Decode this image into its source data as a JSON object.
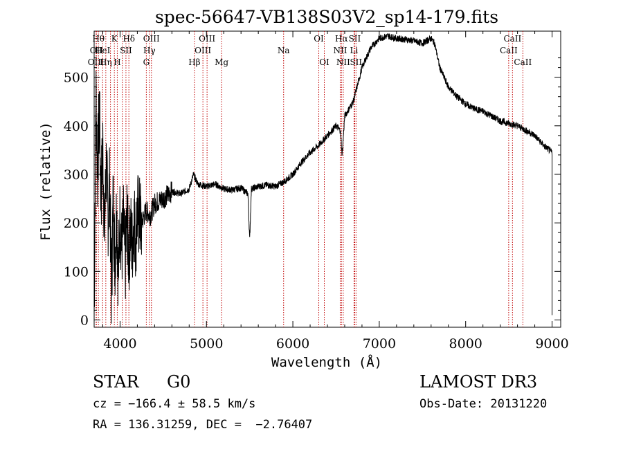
{
  "chart_data": {
    "type": "line",
    "title": "spec-56647-VB138S03V2_sp14-179.fits",
    "xlabel": "Wavelength (Å)",
    "ylabel": "Flux (relative)",
    "xlim": [
      3700,
      9100
    ],
    "ylim": [
      -15,
      595
    ],
    "xticks": [
      4000,
      5000,
      6000,
      7000,
      8000,
      9000
    ],
    "yticks": [
      0,
      100,
      200,
      300,
      400,
      500
    ],
    "grid": false,
    "series": [
      {
        "values_x": [
          3700,
          3720,
          3740,
          3760,
          3780,
          3800,
          3820,
          3840,
          3860,
          3880,
          3900,
          3920,
          3940,
          3960,
          3980,
          4000,
          4020,
          4040,
          4060,
          4080,
          4100,
          4120,
          4140,
          4160,
          4180,
          4200,
          4250,
          4300,
          4350,
          4400,
          4500,
          4600,
          4700,
          4800,
          4850,
          4900,
          5000,
          5100,
          5200,
          5300,
          5400,
          5480,
          5500,
          5520,
          5600,
          5700,
          5800,
          5900,
          6000,
          6100,
          6200,
          6300,
          6400,
          6500,
          6550,
          6570,
          6600,
          6700,
          6800,
          6900,
          7000,
          7100,
          7200,
          7300,
          7400,
          7500,
          7600,
          7640,
          7700,
          7800,
          7900,
          8000,
          8100,
          8200,
          8300,
          8400,
          8500,
          8600,
          8700,
          8800,
          8900,
          9000
        ],
        "values_y": [
          0,
          480,
          300,
          440,
          250,
          360,
          180,
          320,
          210,
          280,
          60,
          250,
          120,
          230,
          90,
          220,
          140,
          200,
          110,
          210,
          130,
          190,
          150,
          210,
          170,
          220,
          200,
          225,
          215,
          240,
          250,
          265,
          260,
          270,
          300,
          280,
          275,
          280,
          270,
          268,
          272,
          260,
          165,
          270,
          275,
          278,
          275,
          285,
          300,
          325,
          345,
          360,
          380,
          400,
          390,
          340,
          420,
          450,
          520,
          560,
          580,
          585,
          580,
          578,
          575,
          570,
          580,
          570,
          520,
          480,
          460,
          445,
          435,
          430,
          420,
          410,
          405,
          400,
          390,
          380,
          360,
          345
        ]
      }
    ],
    "lines": [
      {
        "wl": 3750,
        "label": "Hθ",
        "row": 0
      },
      {
        "wl": 3727,
        "label": "OII",
        "row": 1
      },
      {
        "wl": 3722,
        "label": "OIII",
        "row": 2
      },
      {
        "wl": 3798,
        "label": "HeI",
        "row": 1
      },
      {
        "wl": 3835,
        "label": "Hη",
        "row": 2
      },
      {
        "wl": 3889,
        "label": "",
        "row": -1
      },
      {
        "wl": 3934,
        "label": "K",
        "row": 0
      },
      {
        "wl": 3968,
        "label": "H",
        "row": 2
      },
      {
        "wl": 4026,
        "label": "",
        "row": -1
      },
      {
        "wl": 4068,
        "label": "SII",
        "row": 1
      },
      {
        "wl": 4102,
        "label": "Hδ",
        "row": 0
      },
      {
        "wl": 4304,
        "label": "G",
        "row": 2
      },
      {
        "wl": 4340,
        "label": "Hγ",
        "row": 1
      },
      {
        "wl": 4363,
        "label": "OIII",
        "row": 0
      },
      {
        "wl": 4861,
        "label": "Hβ",
        "row": 2
      },
      {
        "wl": 4959,
        "label": "OIII",
        "row": 1
      },
      {
        "wl": 5007,
        "label": "OIII",
        "row": 0
      },
      {
        "wl": 5175,
        "label": "Mg",
        "row": 2
      },
      {
        "wl": 5893,
        "label": "Na",
        "row": 1
      },
      {
        "wl": 6300,
        "label": "OI",
        "row": 0
      },
      {
        "wl": 6364,
        "label": "OI",
        "row": 2
      },
      {
        "wl": 6548,
        "label": "NII",
        "row": 1
      },
      {
        "wl": 6563,
        "label": "Hα",
        "row": 0
      },
      {
        "wl": 6583,
        "label": "NII",
        "row": 2
      },
      {
        "wl": 6708,
        "label": "Li",
        "row": 1
      },
      {
        "wl": 6716,
        "label": "SII",
        "row": 0
      },
      {
        "wl": 6731,
        "label": "SII",
        "row": 2
      },
      {
        "wl": 8498,
        "label": "CaII",
        "row": 1
      },
      {
        "wl": 8542,
        "label": "CaII",
        "row": 0
      },
      {
        "wl": 8662,
        "label": "CaII",
        "row": 2
      }
    ]
  },
  "info": {
    "class": "STAR",
    "subclass": "G0",
    "survey": "LAMOST DR3",
    "cz": "cz = −166.4 ± 58.5 km/s",
    "obsdate": "Obs-Date: 20131220",
    "radec": "RA = 136.31259, DEC =  −2.76407"
  }
}
